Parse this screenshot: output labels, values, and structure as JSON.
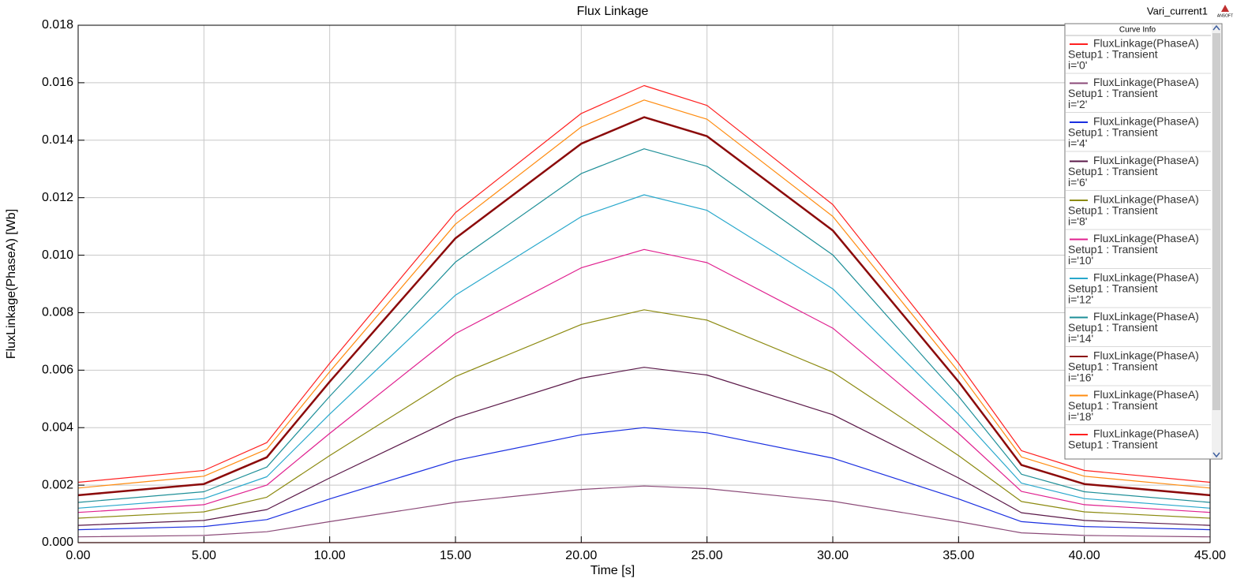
{
  "chart_data": {
    "type": "line",
    "title": "Flux Linkage",
    "report_name": "Vari_current1",
    "x_label": "Time [s]",
    "y_label": "FluxLinkage(PhaseA) [Wb]",
    "legend_title": "Curve Info",
    "legend_position": "top-right",
    "grid": true,
    "xlim": [
      0,
      45
    ],
    "ylim": [
      0,
      0.018
    ],
    "xticks": [
      {
        "value": 0,
        "label": "0.00"
      },
      {
        "value": 5,
        "label": "5.00"
      },
      {
        "value": 10,
        "label": "10.00"
      },
      {
        "value": 15,
        "label": "15.00"
      },
      {
        "value": 20,
        "label": "20.00"
      },
      {
        "value": 25,
        "label": "25.00"
      },
      {
        "value": 30,
        "label": "30.00"
      },
      {
        "value": 35,
        "label": "35.00"
      },
      {
        "value": 40,
        "label": "40.00"
      },
      {
        "value": 45,
        "label": "45.00"
      }
    ],
    "yticks": [
      {
        "value": 0,
        "label": "0.000"
      },
      {
        "value": 0.002,
        "label": "0.002"
      },
      {
        "value": 0.004,
        "label": "0.004"
      },
      {
        "value": 0.006,
        "label": "0.006"
      },
      {
        "value": 0.008,
        "label": "0.008"
      },
      {
        "value": 0.01,
        "label": "0.010"
      },
      {
        "value": 0.012,
        "label": "0.012"
      },
      {
        "value": 0.014,
        "label": "0.014"
      },
      {
        "value": 0.016,
        "label": "0.016"
      },
      {
        "value": 0.018,
        "label": "0.018"
      }
    ],
    "x": [
      0,
      5,
      7.5,
      10,
      15,
      20,
      22.5,
      25,
      30,
      35,
      37.5,
      40,
      45
    ],
    "series": [
      {
        "name": "FluxLinkage(PhaseA)",
        "setup": "Setup1 : Transient",
        "param": "i='0'",
        "color": "#ff2020",
        "values": [
          0,
          0,
          0,
          0,
          0,
          0,
          0,
          0,
          0,
          0,
          0,
          0,
          0
        ]
      },
      {
        "name": "FluxLinkage(PhaseA)",
        "setup": "Setup1 : Transient",
        "param": "i='2'",
        "color": "#8b4a78",
        "values": [
          0.0002,
          0.00025,
          0.00038,
          0.00073,
          0.0014,
          0.00185,
          0.00197,
          0.00188,
          0.00144,
          0.00073,
          0.00034,
          0.00025,
          0.0002
        ]
      },
      {
        "name": "FluxLinkage(PhaseA)",
        "setup": "Setup1 : Transient",
        "param": "i='4'",
        "color": "#1a2fe0",
        "values": [
          0.00045,
          0.00056,
          0.0008,
          0.00152,
          0.00286,
          0.00375,
          0.004,
          0.00382,
          0.00294,
          0.00152,
          0.00073,
          0.00056,
          0.00045
        ]
      },
      {
        "name": "FluxLinkage(PhaseA)",
        "setup": "Setup1 : Transient",
        "param": "i='6'",
        "color": "#5a1848",
        "values": [
          0.0006,
          0.00077,
          0.00115,
          0.00225,
          0.00434,
          0.00572,
          0.0061,
          0.00583,
          0.00445,
          0.00225,
          0.00104,
          0.00077,
          0.0006
        ]
      },
      {
        "name": "FluxLinkage(PhaseA)",
        "setup": "Setup1 : Transient",
        "param": "i='8'",
        "color": "#8c8a10",
        "values": [
          0.00085,
          0.00107,
          0.00158,
          0.00303,
          0.00578,
          0.00759,
          0.0081,
          0.00774,
          0.00593,
          0.00303,
          0.00143,
          0.00107,
          0.00085
        ]
      },
      {
        "name": "FluxLinkage(PhaseA)",
        "setup": "Setup1 : Transient",
        "param": "i='10'",
        "color": "#e0208f",
        "values": [
          0.00105,
          0.00132,
          0.002,
          0.0038,
          0.00727,
          0.00956,
          0.0102,
          0.00974,
          0.00746,
          0.0038,
          0.00178,
          0.00132,
          0.00105
        ]
      },
      {
        "name": "FluxLinkage(PhaseA)",
        "setup": "Setup1 : Transient",
        "param": "i='12'",
        "color": "#28a8cc",
        "values": [
          0.0012,
          0.00153,
          0.00229,
          0.00447,
          0.00861,
          0.01134,
          0.0121,
          0.01156,
          0.00883,
          0.00447,
          0.00207,
          0.00153,
          0.0012
        ]
      },
      {
        "name": "FluxLinkage(PhaseA)",
        "setup": "Setup1 : Transient",
        "param": "i='14'",
        "color": "#1e8f98",
        "values": [
          0.0014,
          0.00177,
          0.00263,
          0.00509,
          0.00976,
          0.01284,
          0.0137,
          0.01309,
          0.01001,
          0.00509,
          0.00238,
          0.00177,
          0.0014
        ]
      },
      {
        "name": "FluxLinkage(PhaseA)",
        "setup": "Setup1 : Transient",
        "param": "i='16'",
        "color": "#8b0a0a",
        "line_width": 2.5,
        "values": [
          0.00165,
          0.00204,
          0.00297,
          0.0056,
          0.01059,
          0.01388,
          0.0148,
          0.01414,
          0.01086,
          0.0056,
          0.0027,
          0.00204,
          0.00165
        ]
      },
      {
        "name": "FluxLinkage(PhaseA)",
        "setup": "Setup1 : Transient",
        "param": "i='18'",
        "color": "#ff8c10",
        "values": [
          0.0019,
          0.00231,
          0.00325,
          0.00595,
          0.01108,
          0.01446,
          0.0154,
          0.01473,
          0.01135,
          0.00595,
          0.00298,
          0.00231,
          0.0019
        ]
      },
      {
        "name": "FluxLinkage(PhaseA)",
        "setup": "Setup1 : Transient",
        "color": "#ff2020",
        "values": [
          0.0021,
          0.00251,
          0.00348,
          0.00624,
          0.01148,
          0.01493,
          0.0159,
          0.01521,
          0.01176,
          0.00624,
          0.0032,
          0.00251,
          0.0021
        ]
      }
    ]
  }
}
